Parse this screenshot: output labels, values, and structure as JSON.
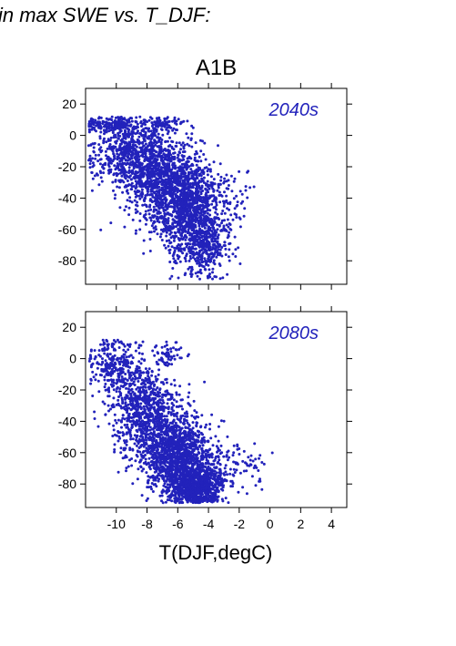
{
  "heading": "in max SWE vs. T_DJF:",
  "chart_data": {
    "type": "scatter",
    "title": "A1B",
    "xlabel": "T(DJF,degC)",
    "ylabel": "",
    "xlim": [
      -12,
      5
    ],
    "ylim": [
      -95,
      30
    ],
    "xticks": [
      -10,
      -8,
      -6,
      -4,
      -2,
      0,
      2,
      4
    ],
    "yticks": [
      20,
      0,
      -20,
      -40,
      -60,
      -80
    ],
    "grid": false,
    "color": "#2222bb",
    "panels": [
      {
        "label": "2040s",
        "clusters": [
          {
            "cx": -9.0,
            "cy": -10,
            "sx": 1.3,
            "sy": 12,
            "n": 700
          },
          {
            "cx": -6.8,
            "cy": -30,
            "sx": 1.2,
            "sy": 14,
            "n": 1000
          },
          {
            "cx": -5.2,
            "cy": -48,
            "sx": 1.0,
            "sy": 16,
            "n": 900
          },
          {
            "cx": -4.2,
            "cy": -70,
            "sx": 0.8,
            "sy": 10,
            "n": 350
          },
          {
            "cx": -10.5,
            "cy": 7,
            "sx": 0.8,
            "sy": 2,
            "n": 120
          },
          {
            "cx": -7.0,
            "cy": 7,
            "sx": 0.6,
            "sy": 2,
            "n": 60
          },
          {
            "cx": -2.5,
            "cy": -42,
            "sx": 0.8,
            "sy": 10,
            "n": 60
          }
        ]
      },
      {
        "label": "2080s",
        "clusters": [
          {
            "cx": -10.0,
            "cy": -5,
            "sx": 0.9,
            "sy": 10,
            "n": 300
          },
          {
            "cx": -8.0,
            "cy": -35,
            "sx": 1.1,
            "sy": 14,
            "n": 800
          },
          {
            "cx": -6.0,
            "cy": -62,
            "sx": 1.1,
            "sy": 12,
            "n": 1200
          },
          {
            "cx": -4.8,
            "cy": -82,
            "sx": 0.9,
            "sy": 7,
            "n": 800
          },
          {
            "cx": -6.6,
            "cy": 3,
            "sx": 0.4,
            "sy": 4,
            "n": 60
          },
          {
            "cx": -3.0,
            "cy": -70,
            "sx": 0.9,
            "sy": 8,
            "n": 120
          },
          {
            "cx": -1.0,
            "cy": -68,
            "sx": 0.5,
            "sy": 6,
            "n": 20
          }
        ]
      }
    ]
  }
}
